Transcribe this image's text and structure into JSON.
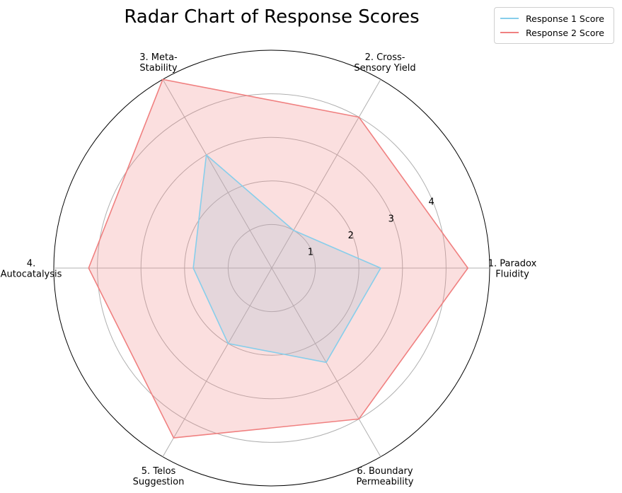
{
  "chart_data": {
    "type": "radar",
    "title": "Radar Chart of Response Scores",
    "categories": [
      "1. Paradox\nFluidity",
      "2. Cross-\nSensory Yield",
      "3. Meta-\nStability",
      "4.\nAutocatalysis",
      "5. Telos\nSuggestion",
      "6. Boundary\nPermeability"
    ],
    "series": [
      {
        "name": "Response 1 Score",
        "values": [
          2.5,
          1.0,
          3.0,
          1.8,
          2.0,
          2.5
        ],
        "color": "#87ceeb"
      },
      {
        "name": "Response 2 Score",
        "values": [
          4.5,
          4.0,
          5.0,
          4.2,
          4.5,
          4.0
        ],
        "color": "#f08080"
      }
    ],
    "radial_ticks": [
      "1",
      "2",
      "3",
      "4"
    ],
    "rlim": [
      0,
      5
    ],
    "grid": true,
    "legend_position": "top-right"
  }
}
